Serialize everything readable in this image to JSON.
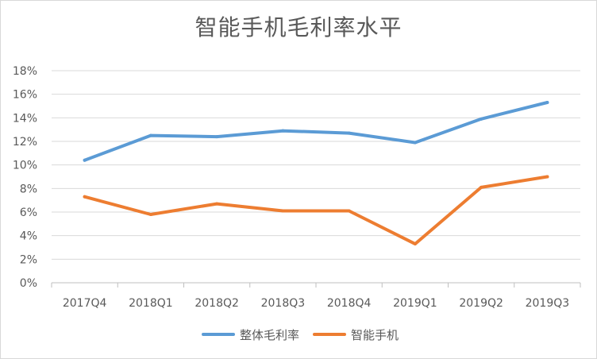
{
  "chart_data": {
    "type": "line",
    "title": "智能手机毛利率水平",
    "categories": [
      "2017Q4",
      "2018Q1",
      "2018Q2",
      "2018Q3",
      "2018Q4",
      "2019Q1",
      "2019Q2",
      "2019Q3"
    ],
    "ylim": [
      0,
      18
    ],
    "yticks": [
      0,
      2,
      4,
      6,
      8,
      10,
      12,
      14,
      16,
      18
    ],
    "ytick_format": "%",
    "grid": true,
    "legend_position": "bottom",
    "series": [
      {
        "name": "整体毛利率",
        "color": "#5B9BD5",
        "values": [
          10.4,
          12.5,
          12.4,
          12.9,
          12.7,
          11.9,
          13.9,
          15.3
        ]
      },
      {
        "name": "智能手机",
        "color": "#ED7D31",
        "values": [
          7.3,
          5.8,
          6.7,
          6.1,
          6.1,
          3.3,
          8.1,
          9.0
        ]
      }
    ]
  }
}
